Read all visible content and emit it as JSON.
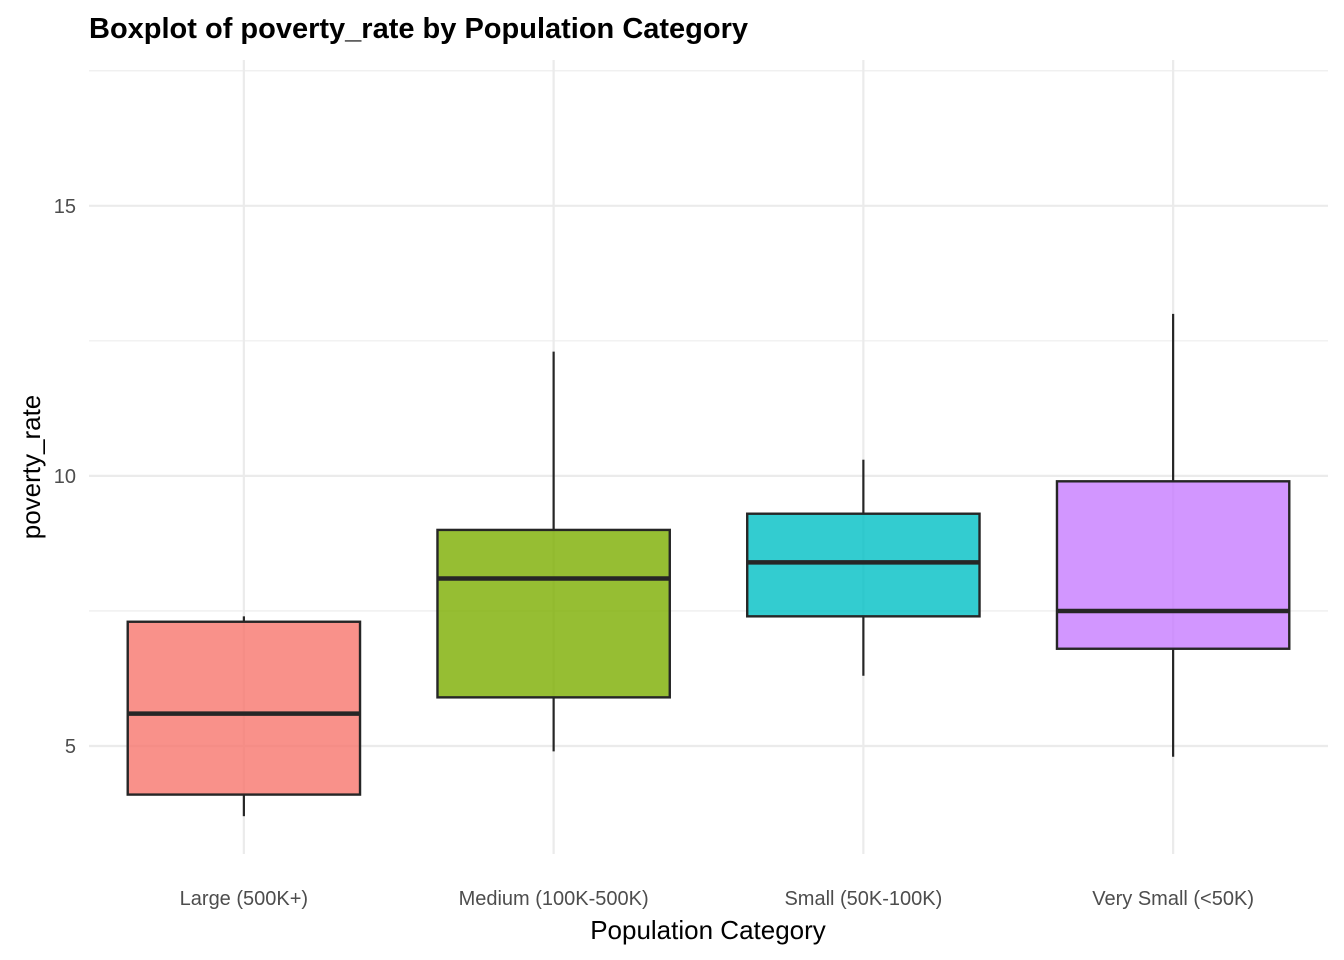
{
  "chart_data": {
    "type": "boxplot",
    "title": "Boxplot of poverty_rate by Population Category",
    "xlabel": "Population Category",
    "ylabel": "poverty_rate",
    "ylim": [
      3.0,
      17.7
    ],
    "yticks": [
      5,
      10,
      15
    ],
    "yminor": [
      7.5,
      12.5,
      17.5
    ],
    "grid": true,
    "legend": "none",
    "categories": [
      "Large (500K+)",
      "Medium (100K-500K)",
      "Small (50K-100K)",
      "Very Small (<50K)"
    ],
    "colors": [
      "#F8766D",
      "#7CAE00",
      "#00BFC4",
      "#C77CFF"
    ],
    "boxes": [
      {
        "category": "Large (500K+)",
        "min": 3.7,
        "q1": 4.1,
        "median": 5.6,
        "q3": 7.3,
        "max": 7.4
      },
      {
        "category": "Medium (100K-500K)",
        "min": 4.9,
        "q1": 5.9,
        "median": 8.1,
        "q3": 9.0,
        "max": 12.3
      },
      {
        "category": "Small (50K-100K)",
        "min": 6.3,
        "q1": 7.4,
        "median": 8.4,
        "q3": 9.3,
        "max": 10.3
      },
      {
        "category": "Very Small (<50K)",
        "min": 4.8,
        "q1": 6.8,
        "median": 7.5,
        "q3": 9.9,
        "max": 13.0
      }
    ]
  }
}
